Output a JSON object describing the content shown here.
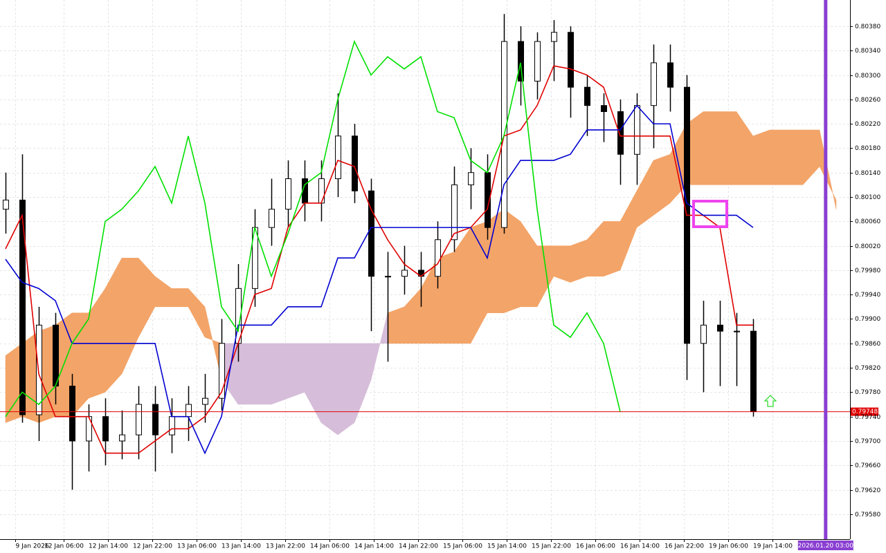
{
  "chart_data": {
    "type": "candlestick",
    "x": [
      1,
      4,
      7,
      10,
      13,
      16,
      19,
      22,
      25,
      28,
      31,
      34,
      37,
      40,
      43,
      46,
      49,
      52,
      55,
      58,
      61,
      64,
      67,
      70,
      73,
      76,
      79,
      82,
      85,
      88,
      91,
      94,
      97,
      100,
      103,
      106,
      109,
      112,
      115,
      118,
      121,
      124,
      127,
      130,
      133,
      136,
      139,
      142,
      145,
      148,
      151
    ],
    "open": [
      0.8008,
      0.80095,
      0.79743,
      0.7989,
      0.7979,
      0.797,
      0.7974,
      0.797,
      0.7971,
      0.7976,
      0.7971,
      0.7974,
      0.7976,
      0.7977,
      0.7986,
      0.7995,
      0.8005,
      0.8008,
      0.8013,
      0.8009,
      0.8013,
      0.802,
      0.8011,
      0.7997,
      0.7997,
      0.7998,
      0.7997,
      0.8003,
      0.8012,
      0.8014,
      0.8005,
      0.80355,
      0.8029,
      0.80355,
      0.8037,
      0.8028,
      0.8025,
      0.8024,
      0.8017,
      0.8025,
      0.8032,
      0.8028,
      0.7986,
      0.7989,
      0.7988,
      0.7988,
      null,
      null,
      null,
      null,
      null
    ],
    "high": [
      0.8014,
      0.8017,
      0.7992,
      0.7991,
      0.7981,
      0.7976,
      0.7977,
      0.7975,
      0.7979,
      0.7979,
      0.7977,
      0.7979,
      0.7981,
      0.799,
      0.7999,
      0.8008,
      0.8013,
      0.8016,
      0.8016,
      0.8016,
      0.8027,
      0.8022,
      0.8013,
      0.8001,
      0.8002,
      0.8001,
      0.8006,
      0.8015,
      0.8018,
      0.8017,
      0.804,
      0.8038,
      0.8037,
      0.8039,
      0.8038,
      0.803,
      0.8027,
      0.8026,
      0.8027,
      0.8035,
      0.8035,
      0.803,
      0.7993,
      0.7993,
      0.7991,
      0.799,
      null,
      null,
      null,
      null,
      null
    ],
    "low": [
      0.8004,
      0.7973,
      0.797,
      0.7976,
      0.7962,
      0.7965,
      0.7966,
      0.7967,
      0.7967,
      0.7965,
      0.7968,
      0.797,
      0.7973,
      0.7975,
      0.7983,
      0.7992,
      0.8002,
      0.8005,
      0.8006,
      0.8006,
      0.801,
      0.8009,
      0.7988,
      0.7983,
      0.7994,
      0.7992,
      0.7995,
      0.8001,
      0.8008,
      0.8003,
      0.8004,
      0.8025,
      0.8026,
      0.8029,
      0.8023,
      0.802,
      0.8019,
      0.8012,
      0.8012,
      0.8018,
      0.8024,
      0.798,
      0.7978,
      0.7979,
      0.7979,
      0.7974,
      null,
      null,
      null,
      null,
      null
    ],
    "close": [
      0.80095,
      0.79743,
      0.7989,
      0.7979,
      0.797,
      0.7974,
      0.797,
      0.7971,
      0.7976,
      0.7971,
      0.7974,
      0.7976,
      0.7977,
      0.7986,
      0.7995,
      0.8005,
      0.8008,
      0.8013,
      0.8009,
      0.8013,
      0.802,
      0.8011,
      0.7997,
      0.7997,
      0.7998,
      0.7997,
      0.8003,
      0.8012,
      0.8014,
      0.8005,
      0.80355,
      0.8029,
      0.80355,
      0.8037,
      0.8028,
      0.8025,
      0.8024,
      0.8017,
      0.8025,
      0.8032,
      0.8028,
      0.7986,
      0.7989,
      0.7988,
      0.7988,
      0.79748,
      null,
      null,
      null,
      null,
      null
    ],
    "up_color": "#ffffff",
    "down_color": "#000000",
    "lines": [
      {
        "color": "#e00000",
        "values": [
          0.80015,
          0.8007,
          0.7981,
          0.7974,
          0.7974,
          0.7974,
          0.7968,
          0.7968,
          0.7968,
          0.797,
          0.7972,
          0.7972,
          0.7974,
          0.7978,
          0.7986,
          0.7994,
          0.7995,
          0.8005,
          0.8009,
          0.8009,
          0.8016,
          0.8015,
          0.8008,
          0.8003,
          0.7999,
          0.7997,
          0.7999,
          0.8004,
          0.8005,
          0.8008,
          0.802,
          0.8021,
          0.8025,
          0.80315,
          0.8031,
          0.803,
          0.8028,
          0.802,
          0.802,
          0.802,
          0.802,
          0.8007,
          0.8007,
          0.8005,
          0.7989,
          0.7989,
          null,
          null,
          null,
          null,
          null
        ]
      },
      {
        "color": "#0000d0",
        "values": [
          0.79998,
          0.7996,
          0.7995,
          0.7993,
          0.7986,
          0.7986,
          0.7986,
          0.7986,
          0.7986,
          0.7986,
          0.7974,
          0.7974,
          0.7968,
          0.7974,
          0.7989,
          0.7989,
          0.7989,
          0.7992,
          0.7992,
          0.7992,
          0.8,
          0.8,
          0.8005,
          0.8005,
          0.8005,
          0.8005,
          0.8005,
          0.8005,
          0.8005,
          0.8,
          0.8012,
          0.8016,
          0.8016,
          0.8016,
          0.8017,
          0.8021,
          0.8021,
          0.8021,
          0.8025,
          0.8022,
          0.8022,
          0.8009,
          0.8007,
          0.8007,
          0.8007,
          0.8005,
          null,
          null,
          null,
          null,
          null
        ]
      },
      {
        "color": "#00e000",
        "values": [
          0.7974,
          0.7978,
          0.7976,
          0.7979,
          0.7986,
          0.799,
          0.8006,
          0.8008,
          0.8011,
          0.8015,
          0.8009,
          0.802,
          0.8009,
          0.7992,
          0.7988,
          0.8005,
          0.7997,
          0.8004,
          0.8012,
          0.8014,
          0.8026,
          0.80355,
          0.803,
          0.8033,
          0.8031,
          0.8033,
          0.8024,
          0.8023,
          0.8016,
          0.8014,
          0.802,
          0.8032,
          0.8008,
          0.7989,
          0.7987,
          0.7991,
          0.7986,
          0.79748,
          null,
          null,
          null,
          null,
          null,
          null,
          null,
          null,
          null,
          null,
          null,
          null,
          null
        ]
      }
    ],
    "cloud": {
      "a": [
        0.7984,
        0.7986,
        0.7988,
        0.7989,
        0.7991,
        0.7991,
        0.7995,
        0.8,
        0.8,
        0.7997,
        0.7995,
        0.7995,
        0.7992,
        0.798,
        0.7976,
        0.7976,
        0.7976,
        0.7977,
        0.7978,
        0.7973,
        0.7971,
        0.7973,
        0.798,
        0.7991,
        0.7992,
        0.7995,
        0.8,
        0.8001,
        0.8005,
        0.8006,
        0.8008,
        0.8006,
        0.8002,
        0.8002,
        0.8002,
        0.8003,
        0.8006,
        0.8006,
        0.8011,
        0.8016,
        0.8017,
        0.8022,
        0.8024,
        0.8024,
        0.8024,
        0.802,
        0.8021,
        0.8021,
        0.8021,
        0.8021,
        0.8008
      ],
      "b": [
        0.7973,
        0.7974,
        0.7973,
        0.7974,
        0.7974,
        0.7977,
        0.7978,
        0.7981,
        0.7987,
        0.7992,
        0.7992,
        0.7992,
        0.7987,
        0.7986,
        0.7986,
        0.7986,
        0.7986,
        0.7986,
        0.7986,
        0.7986,
        0.7986,
        0.7986,
        0.7986,
        0.7986,
        0.7986,
        0.7986,
        0.7986,
        0.7986,
        0.7986,
        0.7991,
        0.7991,
        0.7992,
        0.7992,
        0.7997,
        0.7996,
        0.7997,
        0.7997,
        0.7998,
        0.8005,
        0.8007,
        0.8009,
        0.8012,
        0.8012,
        0.8012,
        0.8012,
        0.8012,
        0.8012,
        0.8012,
        0.8012,
        0.8015,
        0.80095
      ],
      "up_color": "#f3a468",
      "down_color": "#d6bdd9"
    },
    "xlim": [
      0,
      153.5
    ],
    "ylim": [
      0.79539,
      0.80423
    ],
    "xticks": [
      {
        "value": 2.75,
        "label": "9 Jan 2026"
      },
      {
        "value": 11.5,
        "label": "12 Jan 06:00"
      },
      {
        "value": 19.5,
        "label": "12 Jan 14:00"
      },
      {
        "value": 27.5,
        "label": "12 Jan 22:00"
      },
      {
        "value": 35.5,
        "label": "13 Jan 06:00"
      },
      {
        "value": 43.5,
        "label": "13 Jan 14:00"
      },
      {
        "value": 51.5,
        "label": "13 Jan 22:00"
      },
      {
        "value": 59.5,
        "label": "14 Jan 06:00"
      },
      {
        "value": 67.5,
        "label": "14 Jan 14:00"
      },
      {
        "value": 75.5,
        "label": "14 Jan 22:00"
      },
      {
        "value": 83.5,
        "label": "15 Jan 06:00"
      },
      {
        "value": 91.5,
        "label": "15 Jan 14:00"
      },
      {
        "value": 99.5,
        "label": "15 Jan 22:00"
      },
      {
        "value": 107.5,
        "label": "16 Jan 06:00"
      },
      {
        "value": 115.5,
        "label": "16 Jan 14:00"
      },
      {
        "value": 123.5,
        "label": "16 Jan 22:00"
      },
      {
        "value": 131.5,
        "label": "19 Jan 06:00"
      },
      {
        "value": 139.5,
        "label": "19 Jan 14:00"
      }
    ],
    "yticks": [
      {
        "value": 0.7958,
        "label": "0.79580"
      },
      {
        "value": 0.7962,
        "label": "0.79620"
      },
      {
        "value": 0.7966,
        "label": "0.79660"
      },
      {
        "value": 0.797,
        "label": "0.79700"
      },
      {
        "value": 0.7974,
        "label": "0.79740"
      },
      {
        "value": 0.7978,
        "label": "0.79780"
      },
      {
        "value": 0.7982,
        "label": "0.79820"
      },
      {
        "value": 0.7986,
        "label": "0.79860"
      },
      {
        "value": 0.799,
        "label": "0.79900"
      },
      {
        "value": 0.7994,
        "label": "0.79940"
      },
      {
        "value": 0.7998,
        "label": "0.79980"
      },
      {
        "value": 0.8002,
        "label": "0.80020"
      },
      {
        "value": 0.8006,
        "label": "0.80060"
      },
      {
        "value": 0.801,
        "label": "0.80100"
      },
      {
        "value": 0.8014,
        "label": "0.80140"
      },
      {
        "value": 0.8018,
        "label": "0.80180"
      },
      {
        "value": 0.8022,
        "label": "0.80220"
      },
      {
        "value": 0.8026,
        "label": "0.80260"
      },
      {
        "value": 0.803,
        "label": "0.80300"
      },
      {
        "value": 0.8034,
        "label": "0.80340"
      },
      {
        "value": 0.8038,
        "label": "0.80380"
      }
    ],
    "last_price": {
      "value": 0.79748,
      "color": "#e00000"
    },
    "marker": {
      "x": 149.1,
      "label": "2026.01.20 03:00",
      "color": "#8a3fd1"
    },
    "grid": true
  }
}
